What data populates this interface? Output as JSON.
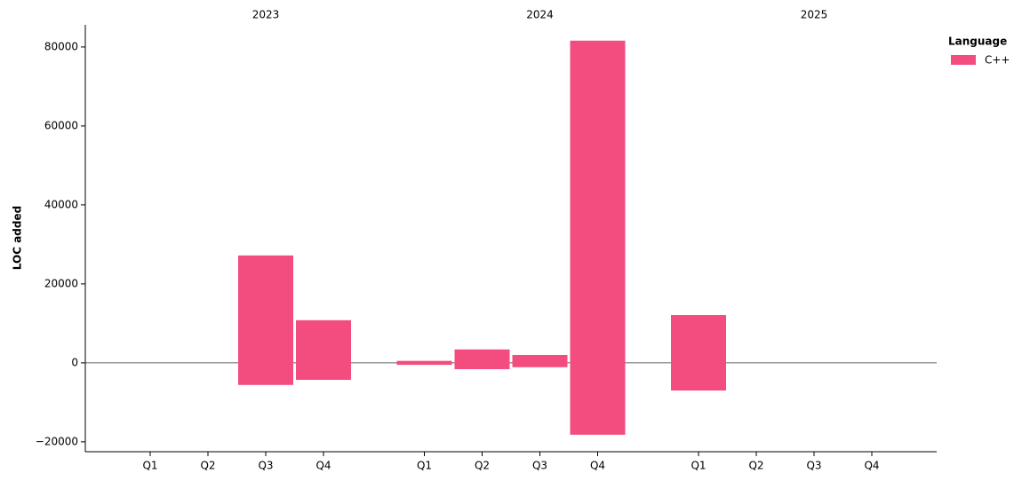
{
  "chart_data": {
    "type": "floating_bar",
    "y_label": "LOC added",
    "ylim": [
      -22500,
      85600
    ],
    "yticks": [
      {
        "value": -20000,
        "label": "−20000"
      },
      0,
      20000,
      40000,
      60000,
      80000
    ],
    "legend": {
      "title": "Language",
      "position": "upper right outside"
    },
    "series": [
      {
        "name": "C++",
        "color": "#f24d7e"
      }
    ],
    "groups": [
      {
        "name": "2023",
        "categories": [
          "Q1",
          "Q2",
          "Q3",
          "Q4"
        ],
        "values": [
          null,
          null,
          27200,
          10800
        ],
        "low_values": [
          null,
          null,
          -5600,
          -4300
        ]
      },
      {
        "name": "2024",
        "categories": [
          "Q1",
          "Q2",
          "Q3",
          "Q4"
        ],
        "values": [
          500,
          3400,
          2000,
          81600
        ],
        "low_values": [
          -500,
          -1600,
          -1100,
          -18200
        ]
      },
      {
        "name": "2025",
        "categories": [
          "Q1",
          "Q2",
          "Q3",
          "Q4"
        ],
        "values": [
          12100,
          null,
          null,
          null
        ],
        "low_values": [
          -7000,
          null,
          null,
          null
        ]
      }
    ]
  }
}
